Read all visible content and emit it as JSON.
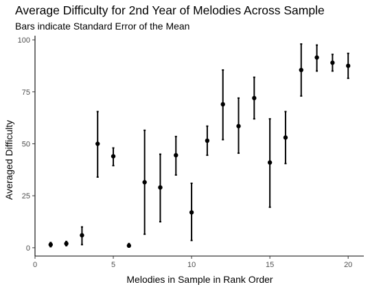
{
  "chart_data": {
    "type": "scatter",
    "title": "Average Difficulty for 2nd Year of Melodies Across Sample",
    "subtitle": "Bars indicate Standard Error of the Mean",
    "xlabel": "Melodies in Sample in Rank Order",
    "ylabel": "Averaged Difficulty",
    "xlim": [
      0,
      21
    ],
    "ylim": [
      -4,
      102
    ],
    "xticks": [
      0,
      5,
      10,
      15,
      20
    ],
    "yticks": [
      0,
      25,
      50,
      75,
      100
    ],
    "grid": false,
    "error_bars": "standard error of the mean",
    "points": [
      {
        "x": 1,
        "y": 1.5,
        "ymin": 0.5,
        "ymax": 2.5
      },
      {
        "x": 2,
        "y": 2,
        "ymin": 1,
        "ymax": 3
      },
      {
        "x": 3,
        "y": 6,
        "ymin": 1.5,
        "ymax": 10
      },
      {
        "x": 4,
        "y": 50,
        "ymin": 34,
        "ymax": 65.5
      },
      {
        "x": 5,
        "y": 44,
        "ymin": 39.5,
        "ymax": 48
      },
      {
        "x": 6,
        "y": 1,
        "ymin": 0.3,
        "ymax": 2
      },
      {
        "x": 7,
        "y": 31.5,
        "ymin": 6.5,
        "ymax": 56.5
      },
      {
        "x": 8,
        "y": 29,
        "ymin": 12.5,
        "ymax": 45
      },
      {
        "x": 9,
        "y": 44.5,
        "ymin": 35,
        "ymax": 53.5
      },
      {
        "x": 10,
        "y": 17,
        "ymin": 3.5,
        "ymax": 31
      },
      {
        "x": 11,
        "y": 51.5,
        "ymin": 44.5,
        "ymax": 58.5
      },
      {
        "x": 12,
        "y": 69,
        "ymin": 52,
        "ymax": 85.5
      },
      {
        "x": 13,
        "y": 58.5,
        "ymin": 45.5,
        "ymax": 72
      },
      {
        "x": 14,
        "y": 72,
        "ymin": 62,
        "ymax": 82
      },
      {
        "x": 15,
        "y": 41,
        "ymin": 19.5,
        "ymax": 62
      },
      {
        "x": 16,
        "y": 53,
        "ymin": 40.5,
        "ymax": 65.5
      },
      {
        "x": 17,
        "y": 85.5,
        "ymin": 73,
        "ymax": 98
      },
      {
        "x": 18,
        "y": 91.5,
        "ymin": 85,
        "ymax": 97.5
      },
      {
        "x": 19,
        "y": 89,
        "ymin": 85,
        "ymax": 93
      },
      {
        "x": 20,
        "y": 87.5,
        "ymin": 81.5,
        "ymax": 93.5
      }
    ]
  }
}
